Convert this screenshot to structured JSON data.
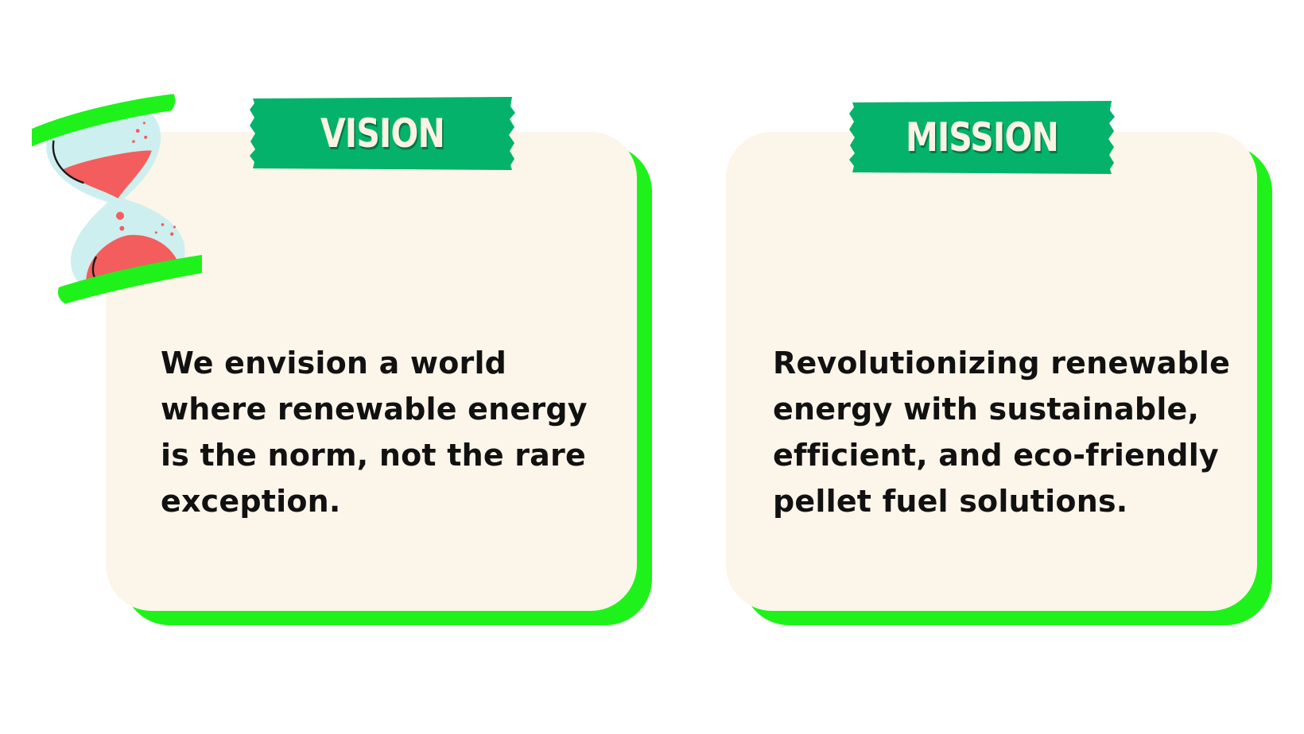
{
  "vision": {
    "title": "VISION",
    "text": "We envision a world where renewable energy is the norm, not the rare exception."
  },
  "mission": {
    "title": "MISSION",
    "text": "Revolutionizing renewable energy with sustainable, efficient, and eco-friendly pellet fuel solutions."
  },
  "colors": {
    "card_background": "#fcf5ea",
    "card_shadow": "#1ef21a",
    "tag_background": "#05b26b",
    "tag_text": "#fcf3e4",
    "hourglass_sand": "#f35d5d",
    "hourglass_glass": "#cdeff0"
  },
  "icons": {
    "decoration": "hourglass-icon"
  }
}
